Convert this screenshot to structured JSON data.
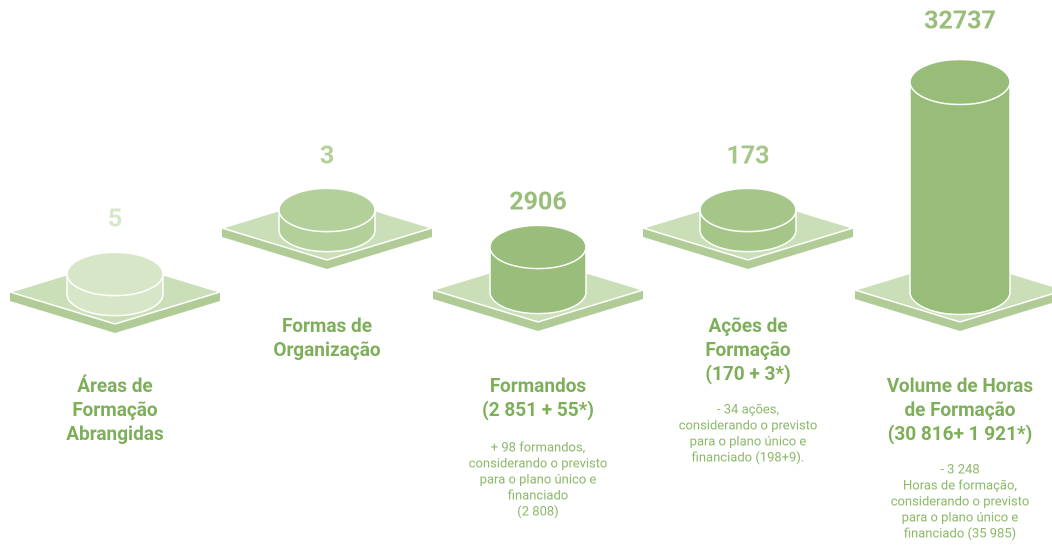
{
  "items": [
    {
      "value": "5",
      "label": [
        "Áreas de",
        "Formação",
        "Abrangidas"
      ],
      "note": []
    },
    {
      "value": "3",
      "label": [
        "Formas de",
        "Organização"
      ],
      "note": []
    },
    {
      "value": "2906",
      "label": [
        "Formandos",
        "(2 851 + 55*)"
      ],
      "note": [
        "+ 98 formandos,",
        "considerando o previsto",
        "para o plano único e",
        "financiado",
        "(2 808)"
      ]
    },
    {
      "value": "173",
      "label": [
        "Ações de",
        "Formação",
        "(170 + 3*)"
      ],
      "note": [
        "- 34 ações,",
        "considerando o previsto",
        "para o plano único e",
        "financiado (198+9)."
      ]
    },
    {
      "value": "32737",
      "label": [
        "Volume de Horas",
        "de Formação",
        "(30 816+ 1 921*)"
      ],
      "note": [
        "- 3 248",
        "Horas de formação,",
        "considerando o previsto",
        "para o plano único e",
        "financiado (35 985)"
      ]
    }
  ]
}
